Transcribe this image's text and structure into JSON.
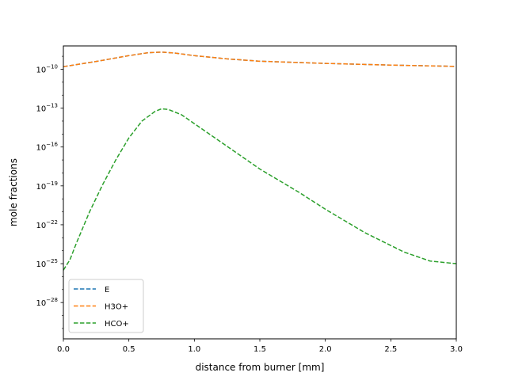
{
  "chart_data": {
    "type": "line",
    "title": "",
    "xlabel": "distance from burner [mm]",
    "ylabel": "mole fractions",
    "xlim": [
      0,
      3.0
    ],
    "ylim_log10": [
      -30.8,
      -8.2
    ],
    "yscale": "log",
    "grid": false,
    "legend_position": "lower-left",
    "x_ticks": [
      {
        "value": 0.0,
        "label": "0.0"
      },
      {
        "value": 0.5,
        "label": "0.5"
      },
      {
        "value": 1.0,
        "label": "1.0"
      },
      {
        "value": 1.5,
        "label": "1.5"
      },
      {
        "value": 2.0,
        "label": "2.0"
      },
      {
        "value": 2.5,
        "label": "2.5"
      },
      {
        "value": 3.0,
        "label": "3.0"
      }
    ],
    "y_ticks": [
      {
        "exp": -10,
        "base": "10",
        "sup": "−10"
      },
      {
        "exp": -13,
        "base": "10",
        "sup": "−13"
      },
      {
        "exp": -16,
        "base": "10",
        "sup": "−16"
      },
      {
        "exp": -19,
        "base": "10",
        "sup": "−19"
      },
      {
        "exp": -22,
        "base": "10",
        "sup": "−22"
      },
      {
        "exp": -25,
        "base": "10",
        "sup": "−25"
      },
      {
        "exp": -28,
        "base": "10",
        "sup": "−28"
      }
    ],
    "series": [
      {
        "name": "E",
        "color": "#1f77b4",
        "x": [
          0,
          0.25,
          0.5,
          0.65,
          0.75,
          0.85,
          1.0,
          1.25,
          1.5,
          2.0,
          2.5,
          3.0
        ],
        "log10_y": [
          -9.8,
          -9.4,
          -8.95,
          -8.72,
          -8.68,
          -8.75,
          -8.95,
          -9.2,
          -9.38,
          -9.55,
          -9.68,
          -9.78
        ]
      },
      {
        "name": "H3O+",
        "color": "#ff7f0e",
        "x": [
          0,
          0.25,
          0.5,
          0.65,
          0.75,
          0.85,
          1.0,
          1.25,
          1.5,
          2.0,
          2.5,
          3.0
        ],
        "log10_y": [
          -9.8,
          -9.4,
          -8.95,
          -8.72,
          -8.68,
          -8.75,
          -8.95,
          -9.2,
          -9.38,
          -9.55,
          -9.68,
          -9.78
        ]
      },
      {
        "name": "HCO+",
        "color": "#2ca02c",
        "x": [
          0,
          0.05,
          0.1,
          0.2,
          0.3,
          0.4,
          0.5,
          0.6,
          0.7,
          0.75,
          0.8,
          0.9,
          1.0,
          1.2,
          1.5,
          1.8,
          2.0,
          2.3,
          2.6,
          2.8,
          3.0
        ],
        "log10_y": [
          -25.5,
          -24.7,
          -23.4,
          -21.0,
          -18.9,
          -17.0,
          -15.3,
          -14.0,
          -13.25,
          -13.05,
          -13.1,
          -13.5,
          -14.2,
          -15.6,
          -17.7,
          -19.5,
          -20.8,
          -22.6,
          -24.1,
          -24.8,
          -25.0
        ]
      }
    ]
  }
}
